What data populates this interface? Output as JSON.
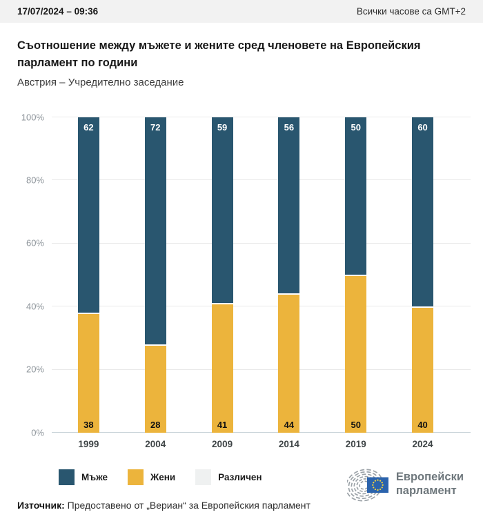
{
  "header": {
    "datetime": "17/07/2024 – 09:36",
    "timezone_note": "Всички часове са GMT+2"
  },
  "title": "Съотношение между мъжете и жените сред членовете на Европейския парламент по години",
  "subtitle": "Австрия – Учредително заседание",
  "chart_data": {
    "type": "bar",
    "stacked": true,
    "categories": [
      "1999",
      "2004",
      "2009",
      "2014",
      "2019",
      "2024"
    ],
    "series": [
      {
        "name": "Мъже",
        "color": "#29566F",
        "values": [
          62,
          72,
          59,
          56,
          50,
          60
        ]
      },
      {
        "name": "Жени",
        "color": "#ECB43C",
        "values": [
          38,
          28,
          41,
          44,
          50,
          40
        ]
      },
      {
        "name": "Различен",
        "color": "#EFF1F1",
        "values": [
          0,
          0,
          0,
          0,
          0,
          0
        ]
      }
    ],
    "ylim": [
      0,
      100
    ],
    "yticks": [
      "0%",
      "20%",
      "40%",
      "60%",
      "80%",
      "100%"
    ],
    "grid": true,
    "legend_position": "bottom",
    "value_labels": "men labels white at segment top, women labels black at segment bottom"
  },
  "footer": {
    "source_label": "Източник:",
    "source_text": "Предоставено от „Вериан“ за Европейския парламент"
  },
  "logo": {
    "line1": "Европейски",
    "line2": "парламент"
  }
}
